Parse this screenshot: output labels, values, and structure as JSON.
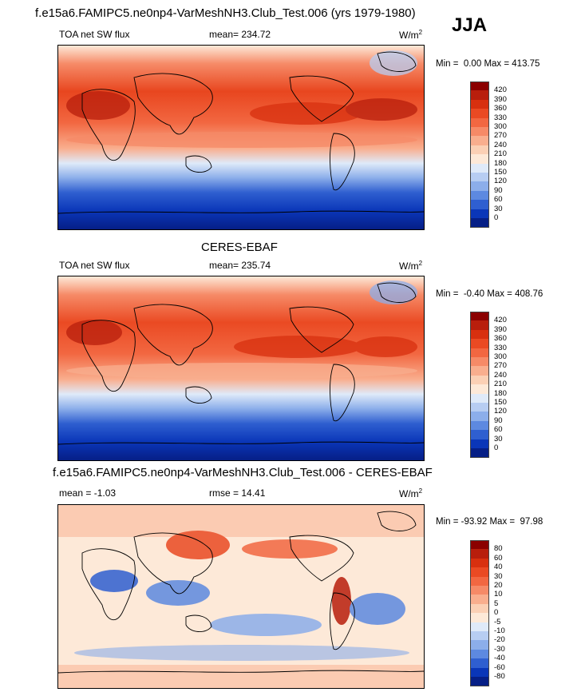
{
  "header": {
    "run_title": "f.e15a6.FAMIPC5.ne0np4-VarMeshNH3.Club_Test.006 (yrs 1979-1980)",
    "season": "JJA"
  },
  "panels": [
    {
      "label_left": "TOA net SW flux",
      "stat_label": "mean= 234.72",
      "units": "W/m",
      "units_sup": "2",
      "min_label": "Min =",
      "min_value": "0.00",
      "max_label": "Max =",
      "max_value": "413.75"
    },
    {
      "dataset_title": "CERES-EBAF",
      "label_left": "TOA net SW flux",
      "stat_label": "mean= 235.74",
      "units": "W/m",
      "units_sup": "2",
      "min_label": "Min =",
      "min_value": "-0.40",
      "max_label": "Max =",
      "max_value": "408.76"
    },
    {
      "diff_title": "f.e15a6.FAMIPC5.ne0np4-VarMeshNH3.Club_Test.006 - CERES-EBAF",
      "label_left": "mean =  -1.03",
      "stat_label": "rmse =  14.41",
      "units": "W/m",
      "units_sup": "2",
      "min_label": "Min =",
      "min_value": "-93.92",
      "max_label": "Max =",
      "max_value": "97.98"
    }
  ],
  "colorbar_abs": {
    "levels": [
      "420",
      "390",
      "360",
      "330",
      "300",
      "270",
      "240",
      "210",
      "180",
      "150",
      "120",
      "90",
      "60",
      "30",
      "0"
    ],
    "colors": [
      "#8b0000",
      "#b81e0c",
      "#d8300f",
      "#ea4a23",
      "#f26741",
      "#f68a67",
      "#f9ae8e",
      "#fbd0b5",
      "#fde9d8",
      "#dfeaf9",
      "#b7cdf2",
      "#8caeea",
      "#5d89e0",
      "#2f5fd0",
      "#0a36b8",
      "#061f86"
    ]
  },
  "colorbar_diff": {
    "levels": [
      "80",
      "60",
      "40",
      "30",
      "20",
      "10",
      "5",
      "0",
      "-5",
      "-10",
      "-20",
      "-30",
      "-40",
      "-60",
      "-80"
    ],
    "colors": [
      "#8b0000",
      "#b81e0c",
      "#d8300f",
      "#ea4a23",
      "#f26741",
      "#f68a67",
      "#f9ae8e",
      "#fbd0b5",
      "#fde9d8",
      "#dfeaf9",
      "#b7cdf2",
      "#8caeea",
      "#5d89e0",
      "#2f5fd0",
      "#0a36b8",
      "#061f86"
    ]
  }
}
